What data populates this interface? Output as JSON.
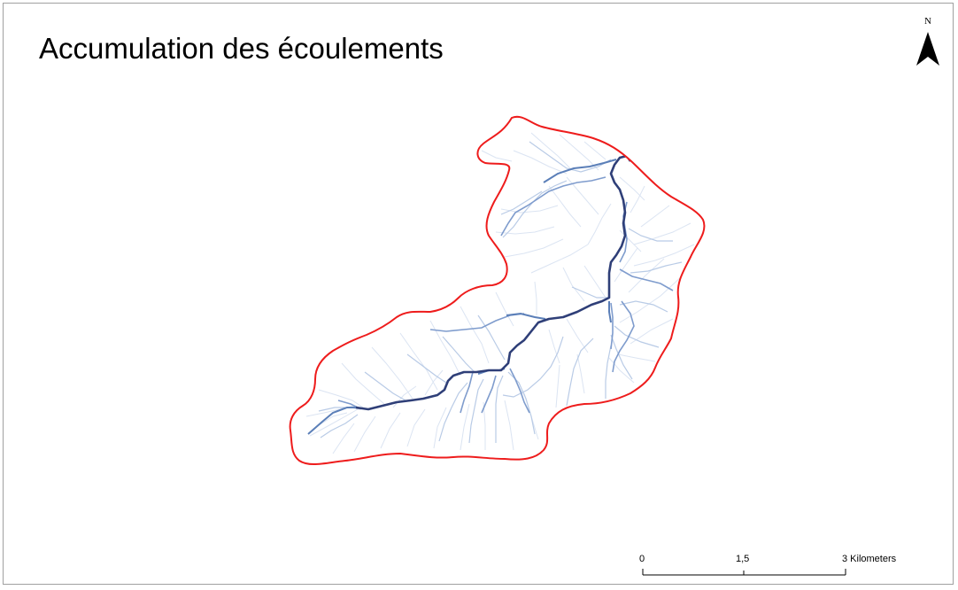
{
  "title": "Accumulation des écoulements",
  "north_arrow": {
    "label": "N",
    "icon": "north-arrow-icon"
  },
  "scale_bar": {
    "labels": [
      "0",
      "1,5",
      "3 Kilometers"
    ]
  },
  "colors": {
    "boundary": "#ee1c1c",
    "main_channel": "#2f3f78",
    "secondary_channel": "#5b7fb8",
    "minor_channel": "#b9cbe6",
    "background": "#ffffff"
  }
}
